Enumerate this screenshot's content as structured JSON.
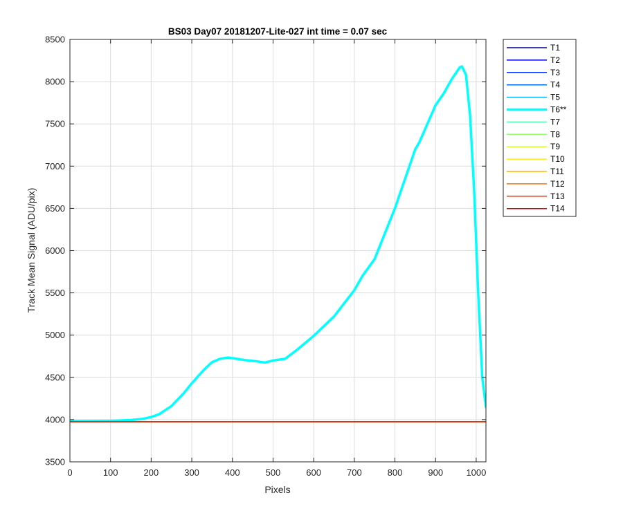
{
  "chart_data": {
    "type": "line",
    "title": "BS03 Day07 20181207-Lite-027 int time = 0.07 sec",
    "xlabel": "Pixels",
    "ylabel": "Track Mean Signal (ADU/pix)",
    "xlim": [
      0,
      1024
    ],
    "ylim": [
      3500,
      8500
    ],
    "xticks": [
      0,
      100,
      200,
      300,
      400,
      500,
      600,
      700,
      800,
      900,
      1000
    ],
    "yticks": [
      3500,
      4000,
      4500,
      5000,
      5500,
      6000,
      6500,
      7000,
      7500,
      8000,
      8500
    ],
    "grid": true,
    "legend_position": "outside-top-right",
    "series": [
      {
        "name": "T1",
        "color": "#00008f",
        "x": [
          0,
          1024
        ],
        "y": [
          3975,
          3975
        ]
      },
      {
        "name": "T2",
        "color": "#0000dc",
        "x": [
          0,
          1024
        ],
        "y": [
          3975,
          3975
        ]
      },
      {
        "name": "T3",
        "color": "#0030ff",
        "x": [
          0,
          1024
        ],
        "y": [
          3975,
          3975
        ]
      },
      {
        "name": "T4",
        "color": "#0070ff",
        "x": [
          0,
          1024
        ],
        "y": [
          3975,
          3975
        ]
      },
      {
        "name": "T5",
        "color": "#00b0ff",
        "x": [
          0,
          1024
        ],
        "y": [
          3975,
          3975
        ]
      },
      {
        "name": "T6**",
        "color": "#00ffff",
        "highlight": true,
        "x": [
          0,
          50,
          100,
          150,
          180,
          200,
          220,
          250,
          280,
          300,
          330,
          350,
          370,
          390,
          410,
          430,
          460,
          480,
          500,
          530,
          560,
          600,
          650,
          700,
          720,
          750,
          800,
          850,
          860,
          900,
          920,
          940,
          960,
          965,
          975,
          985,
          995,
          1005,
          1015,
          1024
        ],
        "y": [
          3980,
          3982,
          3985,
          3995,
          4010,
          4030,
          4065,
          4160,
          4310,
          4430,
          4590,
          4680,
          4720,
          4735,
          4720,
          4705,
          4690,
          4675,
          4700,
          4720,
          4830,
          4990,
          5220,
          5530,
          5700,
          5900,
          6500,
          7200,
          7280,
          7720,
          7860,
          8030,
          8170,
          8180,
          8080,
          7600,
          6700,
          5500,
          4500,
          4150
        ]
      },
      {
        "name": "T7",
        "color": "#50ffaf",
        "x": [
          0,
          1024
        ],
        "y": [
          3975,
          3975
        ]
      },
      {
        "name": "T8",
        "color": "#8fff70",
        "x": [
          0,
          1024
        ],
        "y": [
          3975,
          3975
        ]
      },
      {
        "name": "T9",
        "color": "#cfff30",
        "x": [
          0,
          1024
        ],
        "y": [
          3975,
          3975
        ]
      },
      {
        "name": "T10",
        "color": "#ffef00",
        "x": [
          0,
          1024
        ],
        "y": [
          3975,
          3975
        ]
      },
      {
        "name": "T11",
        "color": "#ffb000",
        "x": [
          0,
          1024
        ],
        "y": [
          3975,
          3975
        ]
      },
      {
        "name": "T12",
        "color": "#ff7000",
        "x": [
          0,
          1024
        ],
        "y": [
          3975,
          3975
        ]
      },
      {
        "name": "T13",
        "color": "#ff3000",
        "x": [
          0,
          1024
        ],
        "y": [
          3975,
          3975
        ]
      },
      {
        "name": "T14",
        "color": "#df0000",
        "x": [
          0,
          1024
        ],
        "y": [
          3975,
          3975
        ]
      }
    ]
  }
}
